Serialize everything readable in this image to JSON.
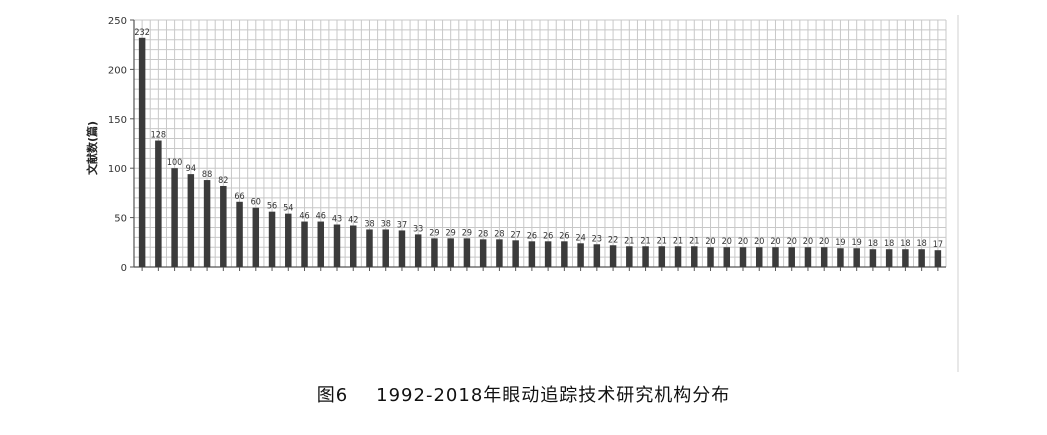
{
  "caption": {
    "figure_number": "图6",
    "text": "1992-2018年眼动追踪技术研究机构分布"
  },
  "chart_data": {
    "type": "bar",
    "ylabel": "文献数(篇)",
    "ylim": [
      0,
      250
    ],
    "yticks": [
      0,
      50,
      100,
      150,
      200,
      250
    ],
    "grid": true,
    "values": [
      232,
      128,
      100,
      94,
      88,
      82,
      66,
      60,
      56,
      54,
      46,
      46,
      43,
      42,
      38,
      38,
      37,
      33,
      29,
      29,
      29,
      28,
      28,
      27,
      26,
      26,
      26,
      24,
      23,
      22,
      21,
      21,
      21,
      21,
      21,
      20,
      20,
      20,
      20,
      20,
      20,
      20,
      20,
      19,
      19,
      18,
      18,
      18,
      18,
      17
    ],
    "colors": {
      "bar": "#3b3b3b",
      "grid": "#c8c8c8",
      "axis": "#555555"
    }
  }
}
